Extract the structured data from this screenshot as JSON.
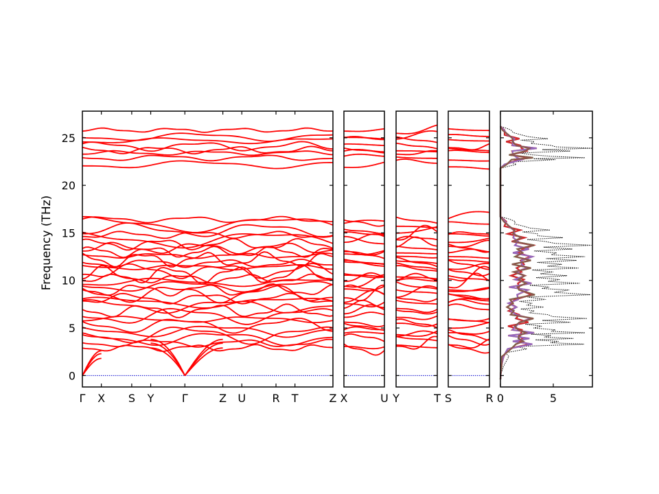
{
  "chart_data": {
    "type": "line",
    "ylabel": "Frequency (THz)",
    "ylim": [
      -1.2,
      27.8
    ],
    "y_ticks": [
      0,
      5,
      10,
      15,
      20,
      25
    ],
    "dos_xlim": [
      0,
      8.7
    ],
    "dos_x_ticks": [
      0,
      5
    ],
    "colors": {
      "bands": "#ff0000",
      "zero_line": "#0000cc",
      "dos_total": "#000000",
      "pdos": [
        "#1f77b4",
        "#ff7f0e",
        "#2ca02c",
        "#d62728",
        "#9467bd",
        "#8c564b"
      ]
    },
    "panels": [
      {
        "labels": [
          "Γ",
          "X",
          "S",
          "Y",
          "Γ",
          "Z",
          "U",
          "R",
          "T",
          "Z"
        ],
        "label_positions": [
          0,
          0.5,
          1.3,
          1.8,
          2.7,
          3.7,
          4.2,
          5.1,
          5.6,
          6.6
        ]
      },
      {
        "labels": [
          "X",
          "U"
        ],
        "label_positions": [
          0,
          1
        ]
      },
      {
        "labels": [
          "Y",
          "T"
        ],
        "label_positions": [
          0,
          1
        ]
      },
      {
        "labels": [
          "S",
          "R"
        ],
        "label_positions": [
          0,
          1
        ]
      }
    ],
    "first_panel_segment_breaks": [
      0.5,
      1.3,
      1.8,
      2.7,
      3.7,
      4.2,
      5.1,
      5.6
    ],
    "high_band_centers": [
      22.2,
      22.9,
      23.4,
      23.7,
      24.1,
      24.7,
      25.1,
      25.8
    ],
    "low_band_centers": [
      2.9,
      3.4,
      3.9,
      4.3,
      4.7,
      5.3,
      5.9,
      6.3,
      6.8,
      7.3,
      7.7,
      8.1,
      8.6,
      9.0,
      9.4,
      9.8,
      10.2,
      10.6,
      11.0,
      11.4,
      11.8,
      12.2,
      12.6,
      13.0,
      13.4,
      13.8,
      14.3,
      14.8,
      15.3,
      15.9,
      16.4
    ],
    "acoustic_branches": [
      {
        "at_gamma": 0,
        "at_x": 1.8,
        "at_mid": 2.9
      },
      {
        "at_gamma": 0,
        "at_x": 2.3,
        "at_mid": 3.4
      },
      {
        "at_gamma": 0,
        "at_x": 2.6,
        "at_mid": 3.8
      }
    ],
    "dos": {
      "total": [
        [
          -0.4,
          0.0
        ],
        [
          0.3,
          0.1
        ],
        [
          1.0,
          0.3
        ],
        [
          2.0,
          0.8
        ],
        [
          2.8,
          2.5
        ],
        [
          3.3,
          7.9
        ],
        [
          3.6,
          5.5
        ],
        [
          3.9,
          6.9
        ],
        [
          4.2,
          4.8
        ],
        [
          4.5,
          8.0
        ],
        [
          4.8,
          5.2
        ],
        [
          5.2,
          3.9
        ],
        [
          5.6,
          6.6
        ],
        [
          6.0,
          8.2
        ],
        [
          6.4,
          4.5
        ],
        [
          6.8,
          3.2
        ],
        [
          7.2,
          4.1
        ],
        [
          7.6,
          3.0
        ],
        [
          8.0,
          4.3
        ],
        [
          8.5,
          8.5
        ],
        [
          9.0,
          6.5
        ],
        [
          9.3,
          4.6
        ],
        [
          9.7,
          7.5
        ],
        [
          10.1,
          5.6
        ],
        [
          10.5,
          6.3
        ],
        [
          10.9,
          5.0
        ],
        [
          11.3,
          7.4
        ],
        [
          11.7,
          5.8
        ],
        [
          12.1,
          7.2
        ],
        [
          12.5,
          8.0
        ],
        [
          12.9,
          5.3
        ],
        [
          13.3,
          6.8
        ],
        [
          13.7,
          8.6
        ],
        [
          14.1,
          4.2
        ],
        [
          14.5,
          5.9
        ],
        [
          14.9,
          3.5
        ],
        [
          15.3,
          4.7
        ],
        [
          15.7,
          2.2
        ],
        [
          16.2,
          1.4
        ],
        [
          16.7,
          0.0
        ],
        [
          21.8,
          0.0
        ],
        [
          22.2,
          1.5
        ],
        [
          22.7,
          5.2
        ],
        [
          22.9,
          8.0
        ],
        [
          23.2,
          3.1
        ],
        [
          23.6,
          6.6
        ],
        [
          23.9,
          8.7
        ],
        [
          24.2,
          4.8
        ],
        [
          24.6,
          3.2
        ],
        [
          24.9,
          4.5
        ],
        [
          25.3,
          2.0
        ],
        [
          25.8,
          1.0
        ],
        [
          26.2,
          0.0
        ]
      ]
    }
  }
}
